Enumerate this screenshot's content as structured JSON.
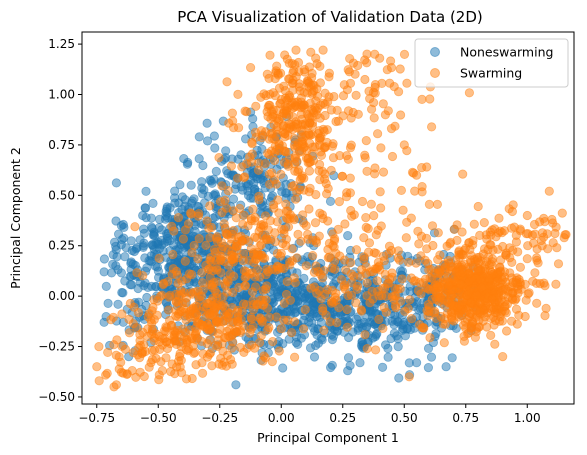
{
  "chart_data": {
    "type": "scatter",
    "title": "PCA Visualization of Validation Data (2D)",
    "xlabel": "Principal Component 1",
    "ylabel": "Principal Component 2",
    "xlim": [
      -0.81,
      1.19
    ],
    "ylim": [
      -0.535,
      1.31
    ],
    "xticks": [
      -0.75,
      -0.5,
      -0.25,
      0.0,
      0.25,
      0.5,
      0.75,
      1.0
    ],
    "xtick_labels": [
      "−0.75",
      "−0.50",
      "−0.25",
      "0.00",
      "0.25",
      "0.50",
      "0.75",
      "1.00"
    ],
    "yticks": [
      -0.5,
      -0.25,
      0.0,
      0.25,
      0.5,
      0.75,
      1.0,
      1.25
    ],
    "ytick_labels": [
      "−0.50",
      "−0.25",
      "0.00",
      "0.25",
      "0.50",
      "0.75",
      "1.00",
      "1.25"
    ],
    "grid": false,
    "legend_position": "top-right",
    "marker_alpha": 0.5,
    "series": [
      {
        "name": "Noneswarming",
        "color": "#1f77b4",
        "clusters": [
          {
            "cx": -0.38,
            "cy": 0.25,
            "sx": 0.12,
            "sy": 0.16,
            "n": 360
          },
          {
            "cx": -0.15,
            "cy": 0.02,
            "sx": 0.17,
            "sy": 0.14,
            "n": 320
          },
          {
            "cx": 0.15,
            "cy": -0.02,
            "sx": 0.15,
            "sy": 0.12,
            "n": 300
          },
          {
            "cx": 0.42,
            "cy": -0.08,
            "sx": 0.1,
            "sy": 0.12,
            "n": 180
          },
          {
            "cx": -0.1,
            "cy": 0.6,
            "sx": 0.12,
            "sy": 0.12,
            "n": 150
          },
          {
            "cx": 0.65,
            "cy": 0.0,
            "sx": 0.08,
            "sy": 0.1,
            "n": 90
          },
          {
            "cx": -0.6,
            "cy": 0.05,
            "sx": 0.07,
            "sy": 0.14,
            "n": 60
          }
        ],
        "points": [
          {
            "x": -0.72,
            "y": 0.12
          },
          {
            "x": -0.65,
            "y": 0.35
          },
          {
            "x": -0.55,
            "y": 0.52
          },
          {
            "x": -0.72,
            "y": -0.13
          },
          {
            "x": -0.62,
            "y": -0.3
          },
          {
            "x": -0.53,
            "y": -0.23
          },
          {
            "x": -0.3,
            "y": 0.77
          },
          {
            "x": -0.12,
            "y": 0.8
          },
          {
            "x": -0.2,
            "y": 0.68
          },
          {
            "x": 0.27,
            "y": -0.37
          },
          {
            "x": 0.67,
            "y": -0.35
          },
          {
            "x": 0.55,
            "y": -0.33
          },
          {
            "x": 0.2,
            "y": 0.47
          },
          {
            "x": 0.27,
            "y": 0.3
          },
          {
            "x": 0.32,
            "y": -0.33
          }
        ]
      },
      {
        "name": "Swarming",
        "color": "#ff7f0e",
        "clusters": [
          {
            "cx": 0.78,
            "cy": 0.02,
            "sx": 0.11,
            "sy": 0.1,
            "n": 520
          },
          {
            "cx": 0.05,
            "cy": 0.85,
            "sx": 0.1,
            "sy": 0.16,
            "n": 280
          },
          {
            "cx": -0.3,
            "cy": -0.12,
            "sx": 0.15,
            "sy": 0.12,
            "n": 300
          },
          {
            "cx": -0.15,
            "cy": 0.25,
            "sx": 0.14,
            "sy": 0.16,
            "n": 220
          },
          {
            "cx": 0.35,
            "cy": 0.45,
            "sx": 0.18,
            "sy": 0.28,
            "n": 140
          },
          {
            "cx": 0.9,
            "cy": 0.28,
            "sx": 0.15,
            "sy": 0.08,
            "n": 90
          },
          {
            "cx": -0.55,
            "cy": -0.28,
            "sx": 0.09,
            "sy": 0.08,
            "n": 60
          },
          {
            "cx": 0.3,
            "cy": 0.05,
            "sx": 0.12,
            "sy": 0.1,
            "n": 80
          },
          {
            "cx": 0.25,
            "cy": 1.05,
            "sx": 0.15,
            "sy": 0.1,
            "n": 60
          }
        ],
        "points": [
          {
            "x": -0.75,
            "y": -0.35
          },
          {
            "x": -0.74,
            "y": -0.42
          },
          {
            "x": -0.68,
            "y": -0.45
          },
          {
            "x": -0.67,
            "y": -0.44
          },
          {
            "x": 0.06,
            "y": 1.22
          },
          {
            "x": 0.12,
            "y": 1.21
          },
          {
            "x": 0.17,
            "y": 1.22
          },
          {
            "x": 0.38,
            "y": 1.2
          },
          {
            "x": 0.4,
            "y": 1.18
          },
          {
            "x": -0.05,
            "y": 1.08
          },
          {
            "x": 1.1,
            "y": 0.38
          },
          {
            "x": 1.15,
            "y": 0.29
          },
          {
            "x": 1.12,
            "y": 0.24
          },
          {
            "x": 1.0,
            "y": 0.4
          },
          {
            "x": 0.5,
            "y": 0.75
          },
          {
            "x": 0.55,
            "y": 0.6
          },
          {
            "x": 0.52,
            "y": -0.4
          },
          {
            "x": 0.9,
            "y": -0.3
          }
        ]
      }
    ]
  }
}
